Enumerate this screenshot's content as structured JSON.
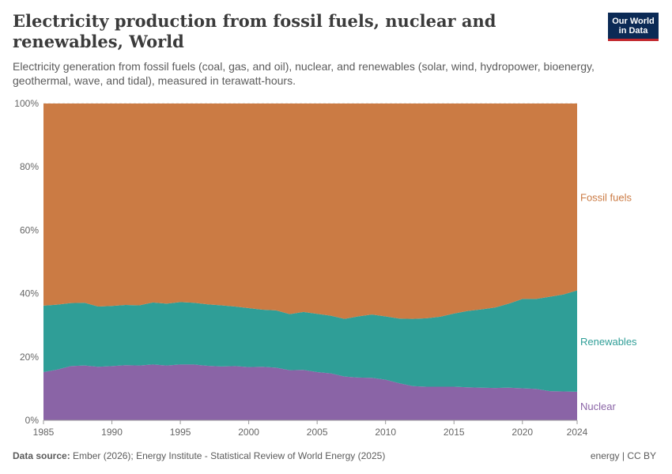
{
  "header": {
    "title": "Electricity production from fossil fuels, nuclear and renewables, World",
    "subtitle": "Electricity generation from fossil fuels (coal, gas, and oil), nuclear, and renewables (solar, wind, hydropower, bioenergy, geothermal, wave, and tidal), measured in terawatt-hours.",
    "logo_line1": "Our World",
    "logo_line2": "in Data"
  },
  "footer": {
    "source_label": "Data source:",
    "source_text": "Ember (2026); Energy Institute - Statistical Review of World Energy (2025)",
    "license": "energy | CC BY"
  },
  "colors": {
    "fossil": "#cb7b44",
    "renewables": "#2f9e97",
    "nuclear": "#8a64a6",
    "grid": "#dddddd"
  },
  "chart_data": {
    "type": "area",
    "stacked": true,
    "normalized_percent": true,
    "x": [
      1985,
      1986,
      1987,
      1988,
      1989,
      1990,
      1991,
      1992,
      1993,
      1994,
      1995,
      1996,
      1997,
      1998,
      1999,
      2000,
      2001,
      2002,
      2003,
      2004,
      2005,
      2006,
      2007,
      2008,
      2009,
      2010,
      2011,
      2012,
      2013,
      2014,
      2015,
      2016,
      2017,
      2018,
      2019,
      2020,
      2021,
      2022,
      2023,
      2024
    ],
    "xticks": [
      1985,
      1990,
      1995,
      2000,
      2005,
      2010,
      2015,
      2020,
      2024
    ],
    "ylim": [
      0,
      100
    ],
    "yticks": [
      0,
      20,
      40,
      60,
      80,
      100
    ],
    "ytick_suffix": "%",
    "series": [
      {
        "name": "Nuclear",
        "color_key": "nuclear",
        "values": [
          15.2,
          16.0,
          17.1,
          17.3,
          16.9,
          17.1,
          17.4,
          17.3,
          17.6,
          17.3,
          17.6,
          17.6,
          17.2,
          17.0,
          17.1,
          16.8,
          16.9,
          16.6,
          15.8,
          15.9,
          15.2,
          14.8,
          13.8,
          13.5,
          13.4,
          12.8,
          11.7,
          10.8,
          10.6,
          10.6,
          10.6,
          10.4,
          10.3,
          10.2,
          10.3,
          10.1,
          9.9,
          9.2,
          9.1,
          9.0
        ]
      },
      {
        "name": "Renewables",
        "color_key": "renewables",
        "values": [
          21.0,
          20.5,
          19.9,
          19.8,
          19.0,
          19.0,
          19.0,
          19.0,
          19.6,
          19.5,
          19.7,
          19.5,
          19.4,
          19.3,
          18.8,
          18.6,
          18.0,
          18.1,
          17.7,
          18.3,
          18.4,
          18.2,
          18.2,
          19.3,
          20.0,
          20.0,
          20.4,
          21.2,
          21.6,
          22.1,
          23.1,
          24.1,
          24.7,
          25.4,
          26.5,
          28.2,
          28.4,
          29.8,
          30.6,
          32.0
        ]
      },
      {
        "name": "Fossil fuels",
        "color_key": "fossil",
        "values": [
          63.8,
          63.5,
          63.0,
          62.9,
          64.1,
          63.9,
          63.6,
          63.7,
          62.8,
          63.2,
          62.7,
          62.9,
          63.4,
          63.7,
          64.1,
          64.6,
          65.1,
          65.3,
          66.5,
          65.8,
          66.4,
          67.0,
          68.0,
          67.2,
          66.6,
          67.2,
          67.9,
          68.0,
          67.8,
          67.3,
          66.3,
          65.5,
          65.0,
          64.4,
          63.2,
          61.7,
          61.7,
          61.0,
          60.3,
          59.0
        ]
      }
    ]
  }
}
